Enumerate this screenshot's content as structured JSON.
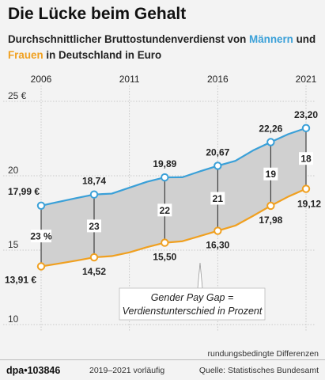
{
  "header": {
    "title": "Die Lücke beim Gehalt",
    "subtitle_part1": "Durchschnittlicher Bruttostundenverdienst von ",
    "subtitle_men": "Männern",
    "subtitle_part2": " und",
    "subtitle_women": "Frauen",
    "subtitle_part3": " in Deutschland in Euro"
  },
  "footer": {
    "logo": "dpa•103846",
    "preliminary": "2019–2021 vorläufig",
    "source": "Quelle: Statistisches Bundesamt",
    "rounding_note": "rundungsbedingte Differenzen"
  },
  "chart_data": {
    "type": "line",
    "x_tick_labels": [
      "2006",
      "2011",
      "2016",
      "2021"
    ],
    "x_ticks": [
      2006,
      2011,
      2016,
      2021
    ],
    "y_ticks": [
      10,
      15,
      20,
      25
    ],
    "y_tick_labels": [
      "10",
      "15",
      "20",
      "25 €"
    ],
    "xlim": [
      2006,
      2021
    ],
    "ylim": [
      10,
      25
    ],
    "grid": true,
    "colors": {
      "men": "#3aa0d8",
      "women": "#f0a020",
      "gap_fill": "#d0d0d0",
      "grid": "#bdbdbd"
    },
    "series": [
      {
        "key": "men",
        "x": [
          2006,
          2007,
          2008,
          2009,
          2010,
          2011,
          2012,
          2013,
          2014,
          2015,
          2016,
          2017,
          2018,
          2019,
          2020,
          2021
        ],
        "values": [
          17.99,
          18.25,
          18.5,
          18.74,
          18.8,
          19.2,
          19.6,
          19.89,
          19.9,
          20.3,
          20.67,
          21.0,
          21.7,
          22.26,
          22.8,
          23.2
        ]
      },
      {
        "key": "women",
        "x": [
          2006,
          2007,
          2008,
          2009,
          2010,
          2011,
          2012,
          2013,
          2014,
          2015,
          2016,
          2017,
          2018,
          2019,
          2020,
          2021
        ],
        "values": [
          13.91,
          14.1,
          14.3,
          14.52,
          14.6,
          14.85,
          15.2,
          15.5,
          15.6,
          15.95,
          16.3,
          16.65,
          17.3,
          17.98,
          18.6,
          19.12
        ]
      }
    ],
    "marked_years": [
      2006,
      2009,
      2013,
      2016,
      2019,
      2021
    ],
    "value_labels": {
      "men": [
        "17,99 €",
        "18,74",
        "19,89",
        "20,67",
        "22,26",
        "23,20"
      ],
      "women": [
        "13,91 €",
        "14,52",
        "15,50",
        "16,30",
        "17,98",
        "19,12"
      ]
    },
    "gap_labels": [
      "23 %",
      "23",
      "22",
      "21",
      "19",
      "18"
    ],
    "annotation": {
      "line1": "Gender Pay Gap  =",
      "line2": "Verdienstunterschied in Prozent"
    }
  }
}
